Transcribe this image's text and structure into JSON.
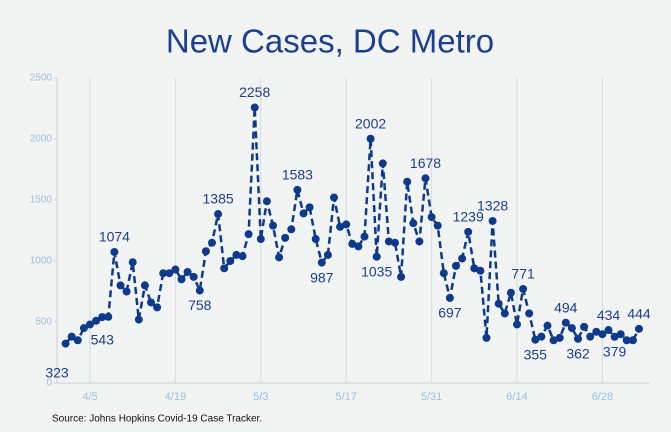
{
  "chart_data": {
    "type": "line",
    "title": "New Cases, DC Metro",
    "source": "Source: Johns Hopkins Covid-19 Case Tracker.",
    "categories": [
      null,
      null,
      null,
      null,
      "4/5",
      null,
      null,
      null,
      null,
      null,
      null,
      null,
      null,
      null,
      null,
      null,
      null,
      null,
      "4/19",
      null,
      null,
      null,
      null,
      null,
      null,
      null,
      null,
      null,
      null,
      null,
      null,
      null,
      "5/3",
      null,
      null,
      null,
      null,
      null,
      null,
      null,
      null,
      null,
      null,
      null,
      null,
      null,
      "5/17",
      null,
      null,
      null,
      null,
      null,
      null,
      null,
      null,
      null,
      null,
      null,
      null,
      null,
      "5/31",
      null,
      null,
      null,
      null,
      null,
      null,
      null,
      null,
      null,
      null,
      null,
      null,
      null,
      "6/14",
      null,
      null,
      null,
      null,
      null,
      null,
      null,
      null,
      null,
      null,
      null,
      null,
      null,
      "6/28",
      null,
      null,
      null,
      null,
      null,
      null
    ],
    "series": [
      {
        "name": "New Cases",
        "color": "#0d3a8a",
        "values": [
          323,
          380,
          350,
          450,
          480,
          510,
          540,
          543,
          1074,
          800,
          750,
          990,
          520,
          800,
          660,
          620,
          900,
          900,
          930,
          850,
          910,
          870,
          758,
          1080,
          1150,
          1385,
          940,
          1000,
          1050,
          1040,
          1220,
          2258,
          1180,
          1490,
          1290,
          1030,
          1190,
          1260,
          1583,
          1390,
          1440,
          1180,
          987,
          1050,
          1520,
          1280,
          1300,
          1140,
          1120,
          1200,
          2002,
          1035,
          1800,
          1160,
          1150,
          870,
          1650,
          1310,
          1160,
          1678,
          1360,
          1290,
          900,
          697,
          960,
          1020,
          1239,
          940,
          920,
          370,
          1328,
          650,
          570,
          740,
          480,
          771,
          570,
          355,
          380,
          470,
          350,
          370,
          494,
          450,
          362,
          460,
          380,
          420,
          400,
          434,
          379,
          400,
          350,
          350,
          444
        ]
      }
    ],
    "ylim": [
      0,
      2500
    ],
    "yticks": [
      0,
      500,
      1000,
      1500,
      2000,
      2500
    ],
    "grid": true
  }
}
